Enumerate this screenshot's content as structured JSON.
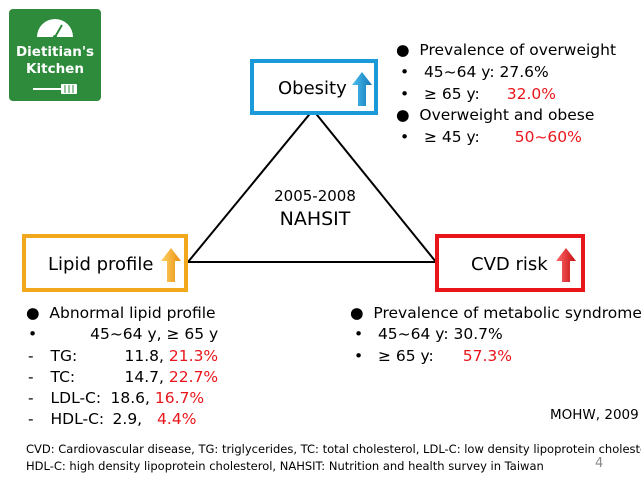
{
  "logo": {
    "line1": "Dietitian's",
    "line2": "Kitchen"
  },
  "nodes": {
    "obesity": "Obesity",
    "lipid": "Lipid profile",
    "cvd": "CVD risk"
  },
  "center": {
    "line1": "2005-2008",
    "line2": "NAHSIT"
  },
  "obesity_notes": {
    "h1": "Prevalence of overweight",
    "r1_label": "45~64 y: 27.6%",
    "r2_label": "≥ 65 y:",
    "r2_value": "32.0%",
    "h2": "Overweight and obese",
    "r3_label": "≥ 45 y:",
    "r3_value": "50~60%"
  },
  "lipid_notes": {
    "h": "Abnormal lipid profile",
    "cols": "45~64 y, ≥ 65 y",
    "rows": [
      {
        "label": "TG:",
        "v1": "11.8,",
        "v2": "21.3%"
      },
      {
        "label": "TC:",
        "v1": "14.7,",
        "v2": "22.7%"
      },
      {
        "label": "LDL-C:",
        "v1": "18.6,",
        "v2": "16.7%"
      },
      {
        "label": "HDL-C:",
        "v1": "2.9,",
        "v2": "4.4%"
      }
    ]
  },
  "cvd_notes": {
    "h": "Prevalence of metabolic syndrome",
    "r1": "45~64 y: 30.7%",
    "r2_label": "≥ 65 y:",
    "r2_value": "57.3%"
  },
  "source": "MOHW, 2009",
  "footnote": {
    "line1": "CVD: Cardiovascular disease, TG: triglycerides, TC: total cholesterol, LDL-C: low density lipoprotein cholesterol,",
    "line2": "HDL-C: high  density lipoprotein cholesterol, NAHSIT: Nutrition and health survey in Taiwan"
  },
  "page_number": "4",
  "colors": {
    "obesity": "#1a9ad8",
    "lipid": "#f2a81d",
    "cvd": "#e8161b",
    "highlight": "#e8161b",
    "logo_bg": "#2e8b3c"
  }
}
